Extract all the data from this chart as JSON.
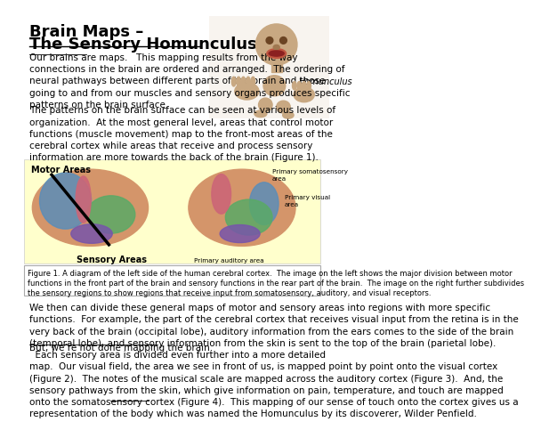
{
  "title_line1": "Brain Maps –",
  "title_line2": "The Sensory Homunculus",
  "para1": "Our brains are maps.   This mapping results from the way\nconnections in the brain are ordered and arranged.  The ordering of\nneural pathways between different parts of the brain and those\ngoing to and from our muscles and sensory organs produces specific\npatterns on the brain surface.",
  "para2": "The patterns on the brain surface can be seen at various levels of\norganization.  At the most general level, areas that control motor\nfunctions (muscle movement) map to the front-most areas of the\ncerebral cortex while areas that receive and process sensory\ninformation are more towards the back of the brain (Figure 1).",
  "fig_caption": "Figure 1. A diagram of the left side of the human cerebral cortex.  The image on the left shows the major division between motor\nfunctions in the front part of the brain and sensory functions in the rear part of the brain.  The image on the right further subdivides\nthe sensory regions to show regions that receive input from somatosensory, auditory, and visual receptors.",
  "para3": "We then can divide these general maps of motor and sensory areas into regions with more specific\nfunctions.  For example, the part of the cerebral cortex that receives visual input from the retina is in the\nvery back of the brain (occipital lobe), auditory information from the ears comes to the side of the brain\n(temporal lobe), and sensory information from the skin is sent to the top of the brain (parietal lobe).",
  "para4_start": "But, we’re not done mapping the brain.",
  "para4_rest": "  Each sensory area is divided even further into a more detailed\nmap.  Our visual field, the area we see in front of us, is mapped point by point onto the visual cortex\n(Figure 2).  The notes of the musical scale are mapped across the auditory cortex (Figure 3).  And, the\nsensory pathways from the skin, which give information on pain, temperature, and touch are mapped\nonto the somatosensory cortex (Figure 4).  This mapping of our sense of touch onto the cortex gives us a\nrepresentation of the body which was named the Homunculus by its discoverer, Wilder Penfield.",
  "homunculus_label": "Homunculus",
  "motor_areas_label": "Motor Areas",
  "sensory_areas_label": "Sensory Areas",
  "primary_somatosensory": "Primary somatosensory\narea",
  "primary_visual": "Primary visual\narea",
  "primary_auditory": "Primary auditory area",
  "bg_color": "#ffffff",
  "text_color": "#000000",
  "figure_bg": "#ffffcc",
  "font_size_title": 13,
  "font_size_body": 7.5,
  "font_size_caption": 6.0
}
